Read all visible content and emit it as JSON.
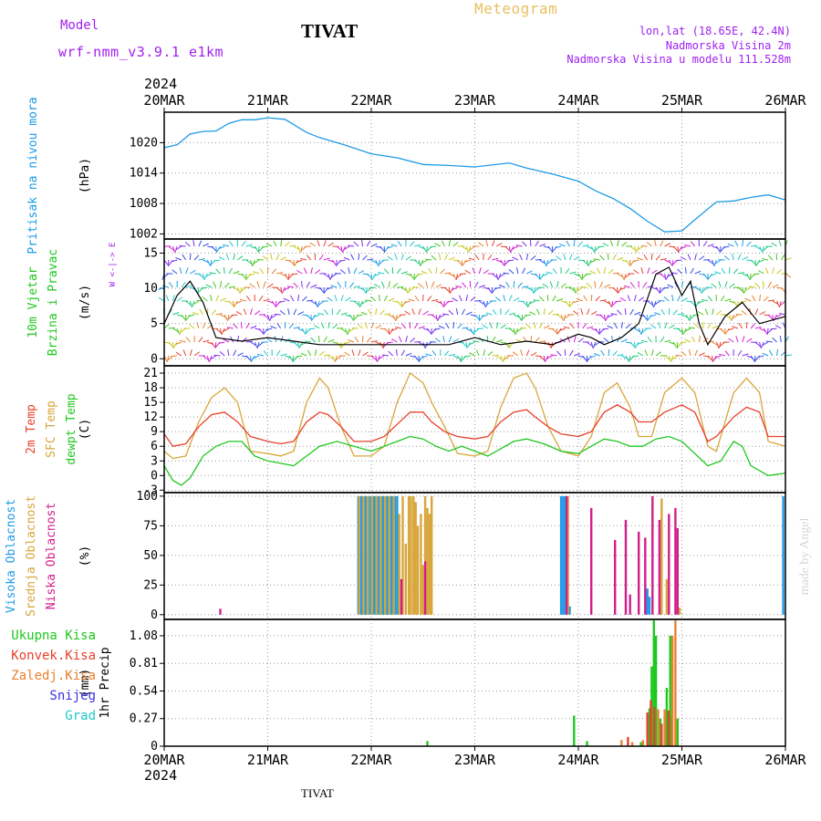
{
  "header": {
    "model_label": "Model",
    "model_name": "wrf-nmm_v3.9.1 e1km",
    "station": "TIVAT",
    "product": "Meteogram",
    "lonlat": "lon,lat (18.65E, 42.4N)",
    "altitude": "Nadmorska Visina 2m",
    "model_altitude": "Nadmorska Visina u modelu 111.528m"
  },
  "footer": {
    "station": "TIVAT",
    "watermark": "made by Angel"
  },
  "colors": {
    "pressure": "#1e9be6",
    "temp2m": "#e8402c",
    "sfc": "#d8a63a",
    "dewpt": "#1ec81e",
    "high": "#1e9be6",
    "mid": "#d8a63a",
    "low": "#d21e8c",
    "total": "#1ec81e",
    "conv": "#e8402c",
    "strat": "#e8802c",
    "snow": "#3a32e0",
    "hail": "#1ec8c8",
    "wind_legend": "#a020f0",
    "header_purple": "#a020f0",
    "header_orange": "#e8c060"
  },
  "chart_data": {
    "x_ticks": [
      "20MAR",
      "21MAR",
      "22MAR",
      "23MAR",
      "24MAR",
      "25MAR",
      "26MAR"
    ],
    "year": "2024",
    "hours": 144,
    "panels": [
      {
        "id": "pressure",
        "type": "line",
        "ylabel_lines": [
          "Pritisak na nivou mora"
        ],
        "unit": "(hPa)",
        "ylim": [
          1001,
          1026
        ],
        "yticks": [
          1002,
          1008,
          1014,
          1020
        ],
        "series": [
          {
            "key": "pressure",
            "x": [
              0,
              3,
              6,
              9,
              12,
              15,
              18,
              21,
              24,
              28,
              33,
              36,
              42,
              48,
              54,
              60,
              66,
              72,
              80,
              84,
              90,
              96,
              100,
              104,
              108,
              112,
              116,
              120,
              124,
              128,
              132,
              136,
              140,
              144
            ],
            "y": [
              1019,
              1019.6,
              1021.7,
              1022.2,
              1022.3,
              1023.8,
              1024.5,
              1024.5,
              1024.9,
              1024.6,
              1022,
              1021,
              1019.5,
              1017.8,
              1017,
              1015.7,
              1015.5,
              1015.2,
              1016,
              1015,
              1013.8,
              1012.4,
              1010.5,
              1009,
              1007,
              1004.5,
              1002.4,
              1002.6,
              1005.5,
              1008.3,
              1008.5,
              1009.2,
              1009.7,
              1008.7
            ]
          }
        ]
      },
      {
        "id": "wind",
        "type": "wind",
        "ylabel_lines": [
          "10m Vjetar",
          "Brzina i Pravac"
        ],
        "unit": "(m/s)",
        "ylim": [
          -1,
          17
        ],
        "yticks": [
          0,
          5,
          10,
          15
        ],
        "compass": "W <-|-> E",
        "series": [
          {
            "key": "speed",
            "x": [
              0,
              3,
              6,
              9,
              12,
              18,
              24,
              30,
              36,
              42,
              48,
              54,
              60,
              66,
              72,
              78,
              84,
              90,
              96,
              99,
              102,
              106,
              108,
              110,
              114,
              117,
              120,
              122,
              124,
              126,
              130,
              134,
              138,
              144
            ],
            "y": [
              5,
              9,
              11,
              8,
              3,
              2.5,
              3,
              2.5,
              2,
              2,
              2,
              2,
              2,
              2,
              3,
              2,
              2.5,
              2,
              3.5,
              3,
              2,
              3,
              4,
              5,
              12,
              13,
              9,
              11,
              5,
              2,
              6,
              8,
              5,
              6
            ]
          }
        ]
      },
      {
        "id": "temperature",
        "type": "line",
        "ylabel_lines": [
          "2m Temp",
          "SFC Temp",
          "dewpt Temp"
        ],
        "unit": "(C)",
        "ylim": [
          -3.5,
          22.5
        ],
        "yticks": [
          -3,
          0,
          3,
          6,
          9,
          12,
          15,
          18,
          21
        ],
        "series": [
          {
            "key": "sfc",
            "name": "SFC Temp",
            "x": [
              0,
              2,
              5,
              8,
              11,
              14,
              17,
              20,
              24,
              27,
              30,
              33,
              36,
              38,
              41,
              44,
              48,
              51,
              54,
              57,
              60,
              62,
              65,
              68,
              72,
              75,
              78,
              81,
              84,
              86,
              89,
              92,
              96,
              99,
              102,
              105,
              108,
              110,
              113,
              116,
              120,
              123,
              126,
              128,
              132,
              135,
              138,
              140,
              144
            ],
            "y": [
              5,
              3.5,
              4,
              11,
              16,
              18,
              15,
              5,
              4.5,
              4,
              5,
              15,
              20,
              18,
              10,
              4,
              4,
              6,
              15,
              21,
              19,
              15,
              10,
              4.5,
              4,
              5,
              14,
              20,
              21,
              18,
              10,
              5,
              4,
              8,
              17,
              19,
              14,
              8,
              8,
              17,
              20,
              17,
              6,
              5,
              17,
              20,
              17,
              7,
              6
            ]
          },
          {
            "key": "temp2m",
            "name": "2m Temp",
            "x": [
              0,
              2,
              5,
              8,
              11,
              14,
              17,
              20,
              24,
              27,
              30,
              33,
              36,
              38,
              41,
              44,
              48,
              51,
              54,
              57,
              60,
              62,
              65,
              68,
              72,
              75,
              78,
              81,
              84,
              86,
              89,
              92,
              96,
              99,
              102,
              105,
              108,
              110,
              113,
              116,
              120,
              123,
              126,
              128,
              132,
              135,
              138,
              140,
              144
            ],
            "y": [
              8.5,
              6,
              6.5,
              10,
              12.5,
              13,
              11,
              8,
              7,
              6.5,
              7,
              11,
              13,
              12.5,
              10,
              7,
              7,
              8,
              10.5,
              13,
              13,
              11,
              9,
              8,
              7.5,
              8,
              11,
              13,
              13.5,
              12,
              10,
              8.5,
              8,
              9,
              13,
              14.5,
              13,
              11,
              11,
              13,
              14.5,
              13,
              7,
              8,
              12,
              14,
              13,
              8,
              8
            ]
          },
          {
            "key": "dewpt",
            "name": "dewpt Temp",
            "x": [
              0,
              2,
              4,
              6,
              9,
              12,
              15,
              18,
              21,
              24,
              27,
              30,
              33,
              36,
              40,
              44,
              48,
              51,
              54,
              57,
              60,
              63,
              66,
              69,
              72,
              75,
              78,
              81,
              84,
              88,
              92,
              96,
              99,
              102,
              105,
              108,
              111,
              114,
              117,
              120,
              123,
              126,
              129,
              132,
              134,
              136,
              140,
              144
            ],
            "y": [
              2,
              -1,
              -2,
              -0.5,
              4,
              6,
              7,
              7,
              4,
              3,
              2.5,
              2,
              4,
              6,
              7,
              6,
              5,
              6,
              7,
              8,
              7.5,
              6,
              5,
              6,
              5,
              4,
              5.5,
              7,
              7.5,
              6.5,
              5,
              4.5,
              6,
              7.5,
              7,
              6,
              6,
              7.5,
              8,
              7,
              4.5,
              2,
              3,
              7,
              6,
              2,
              0,
              0.5
            ]
          }
        ]
      },
      {
        "id": "cloud",
        "type": "bar",
        "ylabel_lines": [
          "Visoka Oblacnost",
          "Srednja Oblacnost",
          "Niska Oblacnost"
        ],
        "unit": "(%)",
        "ylim": [
          -4,
          103
        ],
        "yticks": [
          0,
          25,
          50,
          75,
          100
        ],
        "series": [
          {
            "key": "high",
            "name": "Visoka Oblacnost",
            "x": [
              45,
              45.5,
              46,
              46.5,
              47,
              47.5,
              48,
              48.5,
              49,
              49.5,
              50,
              50.5,
              51,
              51.5,
              52,
              52.5,
              53,
              53.5,
              54,
              92,
              92.5,
              93,
              94,
              112,
              112.5,
              143.5
            ],
            "y": [
              100,
              100,
              100,
              100,
              100,
              100,
              100,
              100,
              100,
              100,
              100,
              100,
              100,
              100,
              100,
              100,
              100,
              100,
              100,
              100,
              100,
              100,
              7,
              22,
              15,
              100
            ]
          },
          {
            "key": "mid",
            "name": "Srednja Oblacnost",
            "x": [
              45.2,
              46.2,
              47.2,
              48.2,
              49.2,
              50.2,
              51.2,
              52.2,
              53.2,
              54.5,
              55.3,
              56,
              56.7,
              57.2,
              57.8,
              58.3,
              58.8,
              59.5,
              60,
              60.5,
              61,
              61.5,
              62,
              93.6,
              115.3,
              116.5,
              119.5
            ],
            "y": [
              100,
              100,
              100,
              100,
              100,
              100,
              100,
              100,
              100,
              85,
              100,
              60,
              100,
              100,
              100,
              95,
              75,
              85,
              42,
              100,
              90,
              85,
              100,
              100,
              98,
              30,
              6
            ]
          },
          {
            "key": "low",
            "name": "Niska Oblacnost",
            "x": [
              13,
              55,
              60.5,
              93.3,
              99,
              104.5,
              107,
              108,
              110,
              111.5,
              113.2,
              114.8,
              117,
              118.5,
              119
            ],
            "y": [
              5,
              30,
              45,
              100,
              90,
              63,
              80,
              17,
              70,
              65,
              100,
              80,
              85,
              90,
              73
            ]
          }
        ]
      },
      {
        "id": "precip",
        "type": "bar",
        "ylabel_lines": [
          "1hr Precip"
        ],
        "unit": "(mm)",
        "ylim": [
          0,
          1.24
        ],
        "yticks": [
          0,
          0.27,
          0.54,
          0.81,
          1.08
        ],
        "series": [
          {
            "key": "total",
            "name": "Ukupna Kisa",
            "x": [
              61,
              95,
              98,
              110.5,
              112.5,
              113,
              113.5,
              114,
              115,
              116.5,
              117.3,
              119
            ],
            "y": [
              0.05,
              0.3,
              0.05,
              0.04,
              0.37,
              0.78,
              1.23,
              1.08,
              0.27,
              0.57,
              1.08,
              0.27
            ]
          },
          {
            "key": "conv",
            "name": "Konvek.Kisa",
            "x": [
              107.5,
              112,
              112.8,
              113.6,
              115.3,
              116.9,
              117.7
            ],
            "y": [
              0.09,
              0.33,
              0.45,
              0.38,
              0.22,
              0.35,
              0.28
            ]
          },
          {
            "key": "strat",
            "name": "Zaledj.Kisa",
            "x": [
              106,
              108.5,
              111,
              114.5,
              116,
              117.8,
              118.5
            ],
            "y": [
              0.06,
              0.04,
              0.06,
              0.36,
              0.36,
              1.08,
              1.23
            ]
          },
          {
            "key": "snow",
            "name": "Snijeg",
            "x": [],
            "y": []
          },
          {
            "key": "hail",
            "name": "Grad",
            "x": [],
            "y": []
          }
        ]
      }
    ]
  }
}
